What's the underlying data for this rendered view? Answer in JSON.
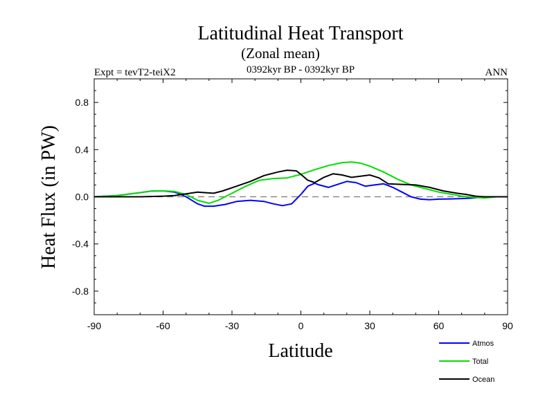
{
  "chart_data": {
    "type": "line",
    "title": "Latitudinal Heat Transport",
    "subtitle": "(Zonal mean)",
    "left_string": "Expt = tevT2-teiX2",
    "center_string": "0392kyr BP - 0392kyr BP",
    "right_string": "ANN",
    "xlabel": "Latitude",
    "ylabel": "Heat Flux (in PW)",
    "xlim": [
      -90,
      90
    ],
    "ylim": [
      -1.0,
      1.0
    ],
    "x_ticks": [
      -90,
      -60,
      -30,
      0,
      30,
      60,
      90
    ],
    "x_tick_labels": [
      "-90",
      "-60",
      "-30",
      "0",
      "30",
      "60",
      "90"
    ],
    "y_ticks": [
      -0.8,
      -0.4,
      0.0,
      0.4,
      0.8
    ],
    "y_tick_labels": [
      "-0.8",
      "-0.4",
      "0.0",
      "0.4",
      "0.8"
    ],
    "zero_line": "dashed",
    "grid": false,
    "legend_position": "bottom-right",
    "series": [
      {
        "name": "Atmos",
        "color": "#0000ff",
        "x": [
          -90,
          -80,
          -70,
          -65,
          -60,
          -55,
          -50,
          -45,
          -42,
          -38,
          -33,
          -28,
          -22,
          -16,
          -12,
          -8,
          -4,
          0,
          3,
          6,
          8,
          12,
          16,
          20,
          24,
          28,
          32,
          36,
          40,
          44,
          48,
          52,
          56,
          60,
          65,
          70,
          75,
          80,
          85,
          90
        ],
        "y": [
          0.0,
          0.01,
          0.035,
          0.048,
          0.05,
          0.04,
          0.0,
          -0.06,
          -0.08,
          -0.08,
          -0.065,
          -0.04,
          -0.03,
          -0.04,
          -0.06,
          -0.075,
          -0.06,
          0.02,
          0.09,
          0.115,
          0.1,
          0.08,
          0.105,
          0.13,
          0.12,
          0.09,
          0.1,
          0.11,
          0.08,
          0.04,
          0.0,
          -0.02,
          -0.025,
          -0.02,
          -0.018,
          -0.015,
          -0.01,
          0.0,
          0.0,
          0.0
        ]
      },
      {
        "name": "Total",
        "color": "#00dd00",
        "x": [
          -90,
          -80,
          -70,
          -65,
          -60,
          -55,
          -50,
          -45,
          -40,
          -36,
          -30,
          -24,
          -18,
          -12,
          -6,
          0,
          6,
          12,
          18,
          22,
          26,
          30,
          36,
          42,
          48,
          54,
          60,
          66,
          70,
          75,
          80,
          85,
          90
        ],
        "y": [
          0.0,
          0.01,
          0.035,
          0.048,
          0.05,
          0.045,
          0.02,
          -0.03,
          -0.055,
          -0.03,
          0.03,
          0.09,
          0.14,
          0.155,
          0.16,
          0.19,
          0.23,
          0.265,
          0.29,
          0.295,
          0.285,
          0.26,
          0.21,
          0.15,
          0.1,
          0.07,
          0.04,
          0.02,
          0.005,
          -0.005,
          -0.01,
          0.0,
          0.0
        ]
      },
      {
        "name": "Ocean",
        "color": "#000000",
        "x": [
          -90,
          -80,
          -70,
          -60,
          -55,
          -50,
          -45,
          -42,
          -38,
          -34,
          -28,
          -22,
          -16,
          -10,
          -6,
          -2,
          0,
          3,
          6,
          10,
          14,
          18,
          22,
          26,
          30,
          34,
          38,
          44,
          50,
          56,
          62,
          68,
          72,
          76,
          80,
          85,
          90
        ],
        "y": [
          0.0,
          0.0,
          0.0,
          0.005,
          0.01,
          0.025,
          0.04,
          0.035,
          0.03,
          0.05,
          0.09,
          0.13,
          0.18,
          0.21,
          0.225,
          0.22,
          0.19,
          0.14,
          0.12,
          0.165,
          0.195,
          0.185,
          0.165,
          0.175,
          0.185,
          0.16,
          0.11,
          0.105,
          0.1,
          0.08,
          0.05,
          0.03,
          0.02,
          0.005,
          0.0,
          0.0,
          0.0
        ]
      }
    ]
  }
}
